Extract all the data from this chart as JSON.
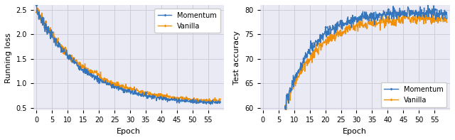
{
  "left": {
    "xlabel": "Epoch",
    "ylabel": "Running loss",
    "xlim": [
      -1,
      60
    ],
    "ylim": [
      0.45,
      2.6
    ],
    "xticks": [
      0,
      5,
      10,
      15,
      20,
      25,
      30,
      35,
      40,
      45,
      50,
      55
    ],
    "yticks": [
      0.5,
      1.0,
      1.5,
      2.0,
      2.5
    ],
    "momentum_color": "#3475bc",
    "vanilla_color": "#f0900a",
    "grid_color": "#c8c8d8",
    "bg_color": "#eaeaf4"
  },
  "right": {
    "xlabel": "Epoch",
    "ylabel": "Test accuracy",
    "xlim": [
      -1,
      60
    ],
    "ylim": [
      59.5,
      81
    ],
    "xticks": [
      0,
      5,
      10,
      15,
      20,
      25,
      30,
      35,
      40,
      45,
      50,
      55
    ],
    "yticks": [
      60,
      65,
      70,
      75,
      80
    ],
    "momentum_color": "#3475bc",
    "vanilla_color": "#f0900a",
    "grid_color": "#c8c8d8",
    "bg_color": "#eaeaf4"
  },
  "legend_momentum": "Momentum",
  "legend_vanilla": "Vanilla",
  "marker": "D",
  "markersize": 2.0,
  "linewidth": 1.0
}
